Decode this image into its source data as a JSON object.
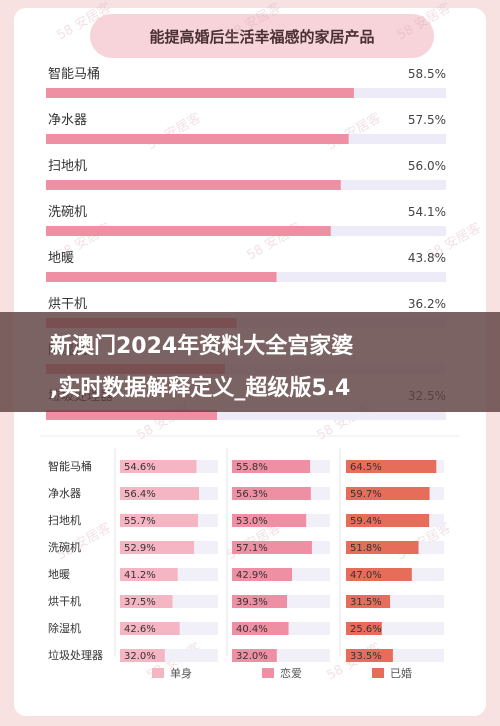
{
  "chart_data": [
    {
      "type": "bar",
      "title": "能提高婚后生活幸福感的家居产品",
      "categories": [
        "智能马桶",
        "净水器",
        "扫地机",
        "洗碗机",
        "地暖",
        "烘干机",
        "除湿机",
        "垃圾处理器"
      ],
      "values": [
        58.5,
        57.5,
        56.0,
        54.1,
        43.8,
        36.2,
        34.0,
        32.5
      ],
      "labels": [
        "58.5%",
        "57.5%",
        "56.0%",
        "54.1%",
        "43.8%",
        "36.2%",
        "",
        "32.5%"
      ],
      "bar_color": "#ee8fa3",
      "track_color": "#ecebf7",
      "xlim": [
        0,
        65
      ]
    },
    {
      "type": "bar",
      "categories": [
        "智能马桶",
        "净水器",
        "扫地机",
        "洗碗机",
        "地暖",
        "烘干机",
        "除湿机",
        "垃圾处理器"
      ],
      "series": [
        {
          "name": "单身",
          "color": "#f6b5c3",
          "values": [
            54.6,
            56.4,
            55.7,
            52.9,
            41.2,
            37.5,
            42.6,
            32.0
          ],
          "labels": [
            "54.6%",
            "56.4%",
            "55.7%",
            "52.9%",
            "41.2%",
            "37.5%",
            "42.6%",
            "32.0%"
          ]
        },
        {
          "name": "恋爱",
          "color": "#ee8fa3",
          "values": [
            55.8,
            56.3,
            53.0,
            57.1,
            42.9,
            39.3,
            40.4,
            32.0
          ],
          "labels": [
            "55.8%",
            "56.3%",
            "53.0%",
            "57.1%",
            "42.9%",
            "39.3%",
            "40.4%",
            "32.0%"
          ]
        },
        {
          "name": "已婚",
          "color": "#e76d5b",
          "values": [
            64.5,
            59.7,
            59.4,
            51.8,
            47.0,
            31.5,
            25.6,
            33.5
          ],
          "labels": [
            "64.5%",
            "59.7%",
            "59.4%",
            "51.8%",
            "47.0%",
            "31.5%",
            "25.6%",
            "33.5%"
          ]
        }
      ],
      "xlim": [
        0,
        80
      ]
    }
  ],
  "banner": {
    "line1": "新澳门2024年资料大全宫家婆",
    "line2": ",实时数据解释定义_超级版5.4"
  },
  "watermark": "58 安居客"
}
